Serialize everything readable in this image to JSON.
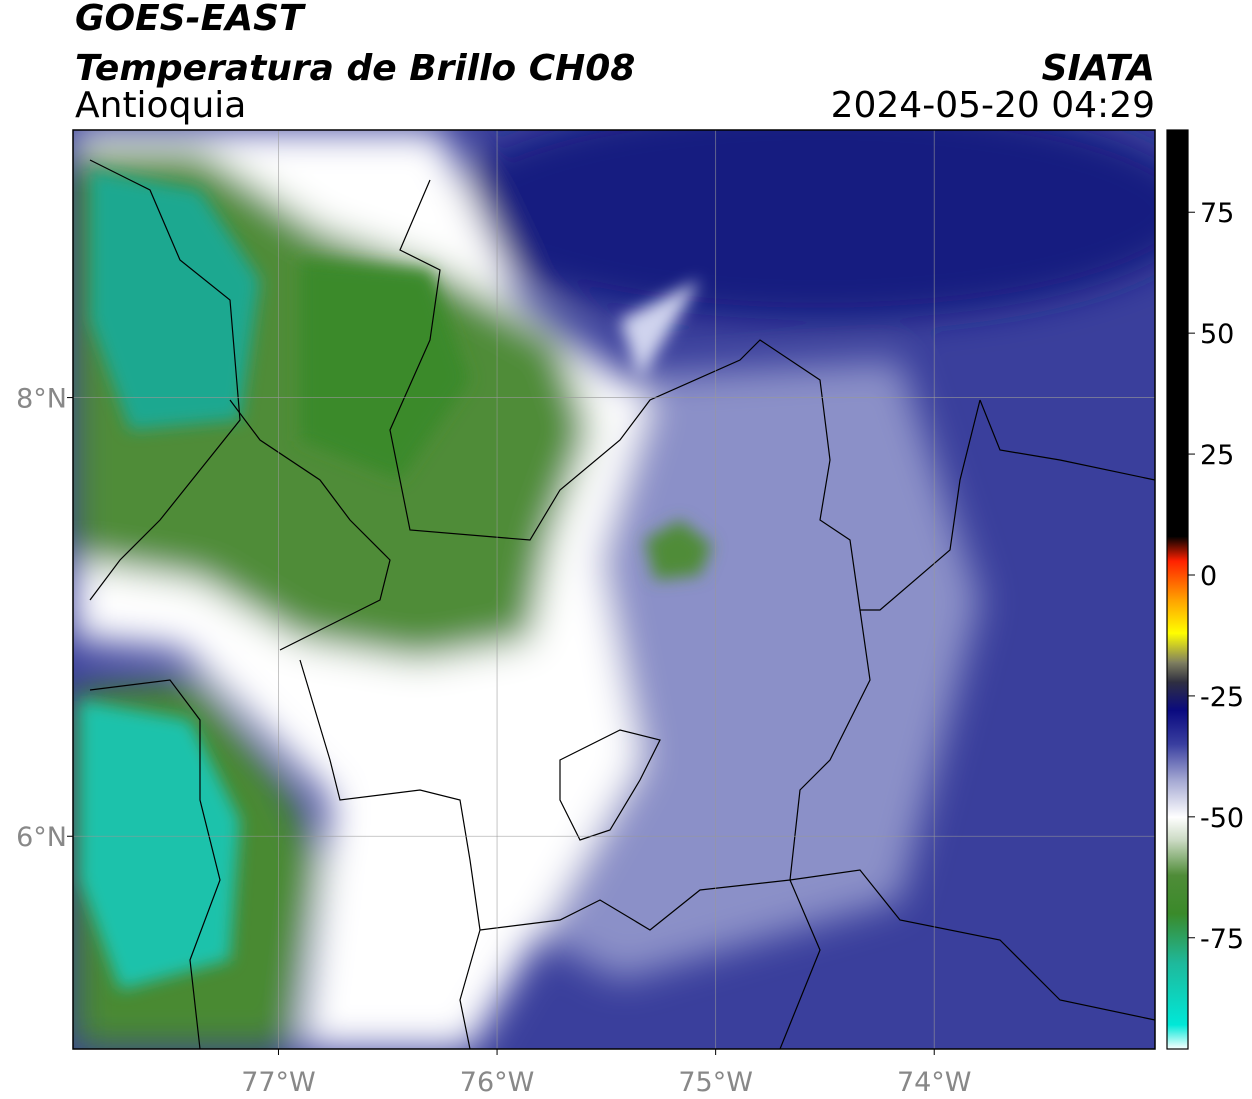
{
  "chart_data": {
    "type": "map",
    "title": "GOES-EAST",
    "subtitle": "Temperatura de Brillo CH08",
    "region": "Antioquia",
    "source": "SIATA",
    "datetime": "2024-05-20 04:29",
    "xlim": [
      -77.94,
      -72.99
    ],
    "ylim": [
      5.03,
      9.22
    ],
    "xticks": [
      {
        "value": -77,
        "label": "77°W"
      },
      {
        "value": -76,
        "label": "76°W"
      },
      {
        "value": -75,
        "label": "75°W"
      },
      {
        "value": -74,
        "label": "74°W"
      }
    ],
    "yticks": [
      {
        "value": 6,
        "label": "6°N"
      },
      {
        "value": 8,
        "label": "8°N"
      }
    ],
    "grid": true,
    "colorbar": {
      "lim": [
        -98,
        92
      ],
      "ticks": [
        -75,
        -50,
        -25,
        0,
        25,
        50,
        75
      ],
      "stops": [
        {
          "value": -98,
          "color": "#ffffff"
        },
        {
          "value": -93,
          "color": "#00e8d8"
        },
        {
          "value": -80,
          "color": "#1fb89a"
        },
        {
          "value": -70,
          "color": "#3a8a2a"
        },
        {
          "value": -62,
          "color": "#4f8c38"
        },
        {
          "value": -55,
          "color": "#c8d8c0"
        },
        {
          "value": -50,
          "color": "#ffffff"
        },
        {
          "value": -42,
          "color": "#9fa3d0"
        },
        {
          "value": -35,
          "color": "#3a3fa0"
        },
        {
          "value": -28,
          "color": "#0a0a80"
        },
        {
          "value": -22,
          "color": "#303040"
        },
        {
          "value": -18,
          "color": "#808060"
        },
        {
          "value": -12,
          "color": "#ffff00"
        },
        {
          "value": -5,
          "color": "#ffa000"
        },
        {
          "value": 3,
          "color": "#ff2000"
        },
        {
          "value": 8,
          "color": "#000000"
        },
        {
          "value": 92,
          "color": "#000000"
        }
      ]
    }
  }
}
